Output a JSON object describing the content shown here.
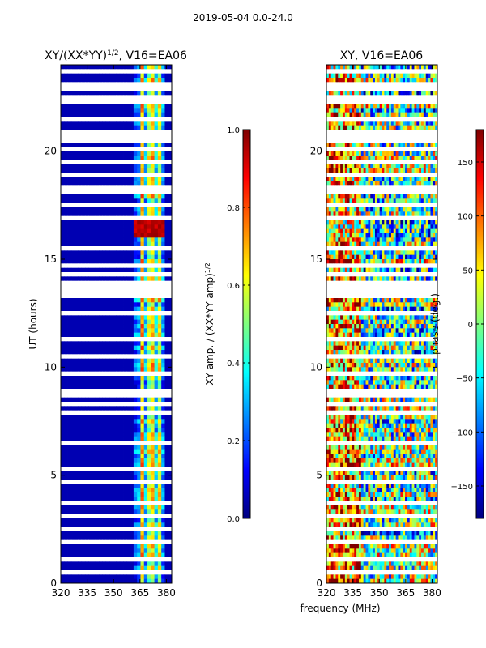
{
  "suptitle": "2019-05-04 0.0-24.0",
  "colors": {
    "jet": [
      "#00007f",
      "#0000ff",
      "#007fff",
      "#00ffff",
      "#7fff7f",
      "#ffff00",
      "#ff7f00",
      "#ff0000",
      "#7f0000"
    ],
    "background_band": "#00008f",
    "gap": "#ffffff"
  },
  "chart_data": [
    {
      "type": "heatmap",
      "title_main": "XY/(XX*YY)",
      "title_sup": "1/2",
      "title_tail": ", V16=EA06",
      "xlabel": "frequency (MHz)",
      "ylabel": "UT (hours)",
      "xlim": [
        320,
        383
      ],
      "ylim": [
        0,
        24
      ],
      "xticks": [
        "320",
        "335",
        "350",
        "365",
        "380"
      ],
      "xtick_values": [
        320,
        335,
        350,
        365,
        380
      ],
      "yticks": [
        "0",
        "5",
        "10",
        "15",
        "20"
      ],
      "ytick_values": [
        0,
        5,
        10,
        15,
        20
      ],
      "colorbar": {
        "label_main": "XY amp. / (XX*YY amp)",
        "label_sup": "1/2",
        "range": [
          0.0,
          1.0
        ],
        "ticks": [
          "0.0",
          "0.2",
          "0.4",
          "0.6",
          "0.8",
          "1.0"
        ],
        "tick_values": [
          0.0,
          0.2,
          0.4,
          0.6,
          0.8,
          1.0
        ]
      },
      "active_band_mhz": [
        361,
        380
      ],
      "low_value": 0.05,
      "band_values_by_channel": [
        0.15,
        0.55,
        0.2,
        0.65,
        0.25,
        0.5,
        0.2,
        0.6,
        0.3,
        0.55,
        0.2,
        0.45
      ],
      "hot_spot_hours": [
        16.0,
        16.9
      ],
      "hot_spot_value": 0.9,
      "flagged_hours": [
        [
          0.0,
          0.1
        ],
        [
          0.5,
          0.6
        ],
        [
          1.1,
          1.2
        ],
        [
          1.7,
          2.0
        ],
        [
          2.4,
          2.5
        ],
        [
          3.0,
          3.2
        ],
        [
          3.6,
          3.7
        ],
        [
          4.0,
          4.1
        ],
        [
          4.6,
          4.7
        ],
        [
          5.3,
          5.4
        ],
        [
          5.9,
          6.0
        ],
        [
          6.5,
          6.6
        ],
        [
          7.2,
          7.3
        ],
        [
          7.7,
          7.9
        ],
        [
          8.3,
          8.4
        ],
        [
          8.7,
          9.0
        ],
        [
          9.6,
          9.7
        ],
        [
          10.4,
          10.5
        ],
        [
          11.2,
          11.3
        ],
        [
          12.4,
          12.5
        ],
        [
          13.2,
          13.9
        ],
        [
          14.3,
          14.4
        ],
        [
          14.7,
          14.8
        ],
        [
          15.4,
          15.5
        ],
        [
          16.9,
          17.0
        ],
        [
          17.5,
          17.6
        ],
        [
          18.1,
          18.3
        ],
        [
          18.8,
          18.9
        ],
        [
          19.5,
          19.6
        ],
        [
          20.1,
          20.2
        ],
        [
          20.5,
          20.9
        ],
        [
          21.5,
          21.6
        ],
        [
          22.2,
          22.5
        ],
        [
          22.9,
          23.1
        ],
        [
          23.6,
          23.8
        ]
      ]
    },
    {
      "type": "heatmap",
      "title_main": "XY, V16=EA06",
      "xlabel": "frequency (MHz)",
      "ylabel": "",
      "xlim": [
        320,
        383
      ],
      "ylim": [
        0,
        24
      ],
      "xticks": [
        "320",
        "335",
        "350",
        "365",
        "380"
      ],
      "xtick_values": [
        320,
        335,
        350,
        365,
        380
      ],
      "yticks": [
        "0",
        "5",
        "10",
        "15",
        "20"
      ],
      "ytick_values": [
        0,
        5,
        10,
        15,
        20
      ],
      "colorbar": {
        "label_main": "phase (deg.)",
        "range": [
          -180,
          180
        ],
        "ticks": [
          "−150",
          "−100",
          "−50",
          "0",
          "50",
          "100",
          "150"
        ],
        "tick_values": [
          -150,
          -100,
          -50,
          0,
          50,
          100,
          150
        ]
      },
      "phase_description": "noisy phase across all channels, high values near low frequencies, mid values elsewhere",
      "flagged_hours": [
        [
          0.0,
          0.1
        ],
        [
          0.5,
          0.6
        ],
        [
          1.1,
          1.2
        ],
        [
          1.7,
          2.0
        ],
        [
          2.4,
          2.5
        ],
        [
          3.0,
          3.2
        ],
        [
          3.6,
          3.7
        ],
        [
          4.0,
          4.1
        ],
        [
          4.6,
          4.7
        ],
        [
          5.3,
          5.4
        ],
        [
          5.9,
          6.0
        ],
        [
          6.5,
          6.6
        ],
        [
          7.2,
          7.3
        ],
        [
          7.7,
          7.9
        ],
        [
          8.3,
          8.4
        ],
        [
          8.7,
          9.0
        ],
        [
          9.6,
          9.7
        ],
        [
          10.4,
          10.5
        ],
        [
          11.2,
          11.3
        ],
        [
          12.4,
          12.5
        ],
        [
          13.2,
          13.9
        ],
        [
          14.3,
          14.4
        ],
        [
          14.7,
          14.8
        ],
        [
          15.4,
          15.5
        ],
        [
          16.9,
          17.0
        ],
        [
          17.5,
          17.6
        ],
        [
          18.1,
          18.3
        ],
        [
          18.8,
          18.9
        ],
        [
          19.5,
          19.6
        ],
        [
          20.1,
          20.2
        ],
        [
          20.5,
          20.9
        ],
        [
          21.5,
          21.6
        ],
        [
          22.2,
          22.5
        ],
        [
          22.9,
          23.1
        ],
        [
          23.6,
          23.8
        ]
      ]
    }
  ]
}
